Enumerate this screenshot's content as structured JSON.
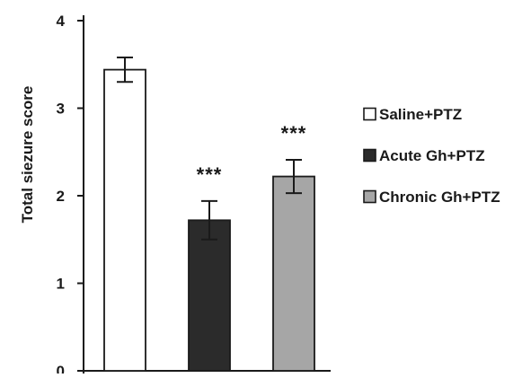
{
  "chart_data": {
    "type": "bar",
    "title": "",
    "xlabel": "",
    "ylabel": "Total siezure score",
    "ylim": [
      0,
      4
    ],
    "yticks": [
      0,
      1,
      2,
      3,
      4
    ],
    "grid": false,
    "legend_position": "right",
    "categories": [
      "Saline+PTZ",
      "Acute Gh+PTZ",
      "Chronic Gh+PTZ"
    ],
    "values": [
      3.44,
      1.72,
      2.22
    ],
    "errors": [
      0.14,
      0.22,
      0.19
    ],
    "significance": [
      "",
      "***",
      "***"
    ],
    "colors": [
      "#ffffff",
      "#2b2b2b",
      "#a6a6a6"
    ]
  }
}
